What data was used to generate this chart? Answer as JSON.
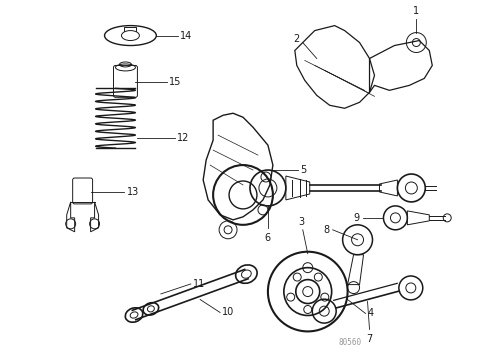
{
  "background_color": "#ffffff",
  "line_color": "#1a1a1a",
  "fig_width": 4.9,
  "fig_height": 3.6,
  "dpi": 100,
  "watermark": "80560",
  "lw": 0.7
}
